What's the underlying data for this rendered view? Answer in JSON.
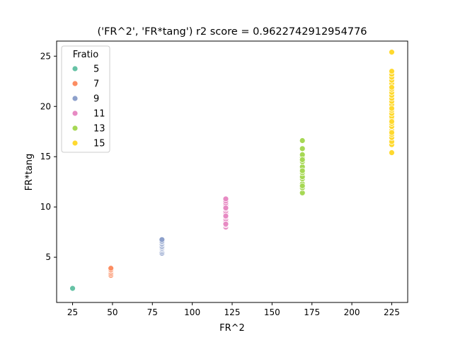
{
  "chart_data": {
    "type": "scatter",
    "title": "('FR^2', 'FR*tang') r2 score = 0.9622742912954776",
    "xlabel": "FR^2",
    "ylabel": "FR*tang",
    "xlim": [
      15,
      235
    ],
    "ylim": [
      0.5,
      26.5
    ],
    "xticks": [
      25,
      50,
      75,
      100,
      125,
      150,
      175,
      200,
      225
    ],
    "yticks": [
      5,
      10,
      15,
      20,
      25
    ],
    "grid": false,
    "legend": {
      "title": "Fratio",
      "position": "upper-left"
    },
    "series": [
      {
        "name": "5",
        "color": "#66c2a5",
        "x": [
          25
        ],
        "y": [
          1.9
        ]
      },
      {
        "name": "7",
        "color": "#fc8d62",
        "x": [
          49,
          49,
          49,
          49,
          49,
          49
        ],
        "y": [
          3.2,
          3.35,
          3.5,
          3.65,
          3.75,
          3.9
        ]
      },
      {
        "name": "9",
        "color": "#8da0cb",
        "x": [
          81,
          81,
          81,
          81,
          81,
          81,
          81,
          81,
          81,
          81,
          81,
          81
        ],
        "y": [
          5.4,
          5.55,
          5.7,
          5.8,
          5.9,
          6.0,
          6.1,
          6.25,
          6.35,
          6.5,
          6.6,
          6.75
        ]
      },
      {
        "name": "11",
        "color": "#e78ac3",
        "x": [
          121,
          121,
          121,
          121,
          121,
          121,
          121,
          121,
          121,
          121,
          121,
          121,
          121,
          121,
          121,
          121,
          121,
          121
        ],
        "y": [
          8.0,
          8.2,
          8.4,
          8.6,
          8.8,
          9.0,
          9.2,
          9.4,
          9.6,
          9.8,
          10.0,
          10.2,
          10.4,
          10.6,
          10.8,
          8.3,
          9.1,
          9.9
        ]
      },
      {
        "name": "13",
        "color": "#a6d854",
        "x": [
          169,
          169,
          169,
          169,
          169,
          169,
          169,
          169,
          169,
          169,
          169,
          169,
          169,
          169,
          169,
          169
        ],
        "y": [
          11.4,
          11.9,
          12.3,
          12.8,
          13.0,
          13.4,
          13.8,
          14.0,
          14.5,
          14.9,
          15.2,
          15.8,
          16.6,
          12.1,
          13.6,
          14.7
        ]
      },
      {
        "name": "15",
        "color": "#ffd92f",
        "x": [
          225,
          225,
          225,
          225,
          225,
          225,
          225,
          225,
          225,
          225,
          225,
          225,
          225,
          225,
          225,
          225,
          225,
          225,
          225,
          225,
          225,
          225,
          225,
          225,
          225,
          225,
          225,
          225,
          225,
          225
        ],
        "y": [
          15.4,
          16.2,
          16.5,
          16.9,
          17.2,
          17.6,
          18.0,
          18.3,
          18.7,
          19.0,
          19.3,
          19.6,
          19.9,
          20.2,
          20.5,
          20.8,
          21.1,
          21.4,
          21.7,
          22.0,
          22.3,
          22.6,
          22.9,
          23.2,
          23.5,
          17.4,
          18.5,
          19.8,
          21.9,
          25.4
        ]
      }
    ]
  }
}
